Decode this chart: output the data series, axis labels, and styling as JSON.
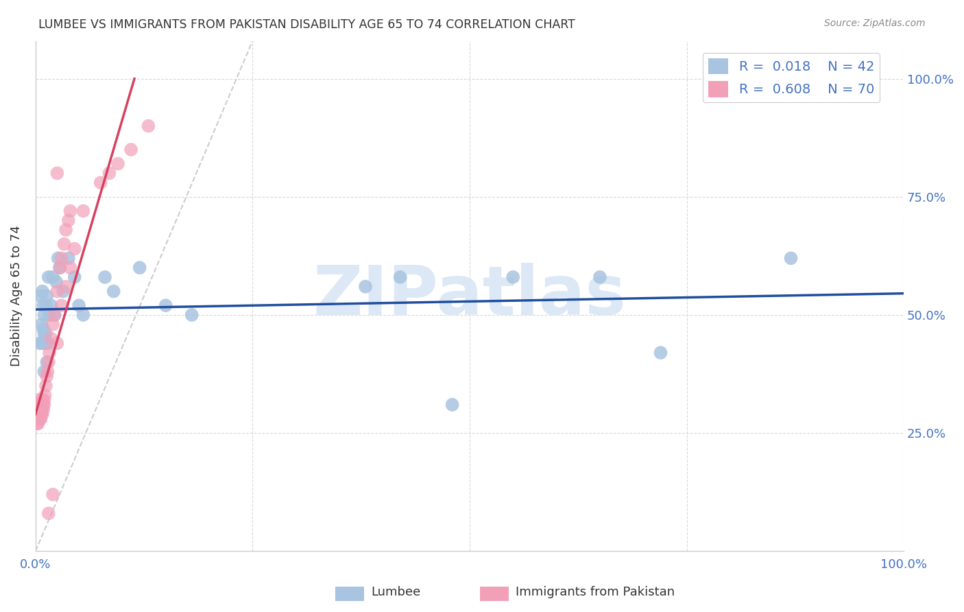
{
  "title": "LUMBEE VS IMMIGRANTS FROM PAKISTAN DISABILITY AGE 65 TO 74 CORRELATION CHART",
  "source": "Source: ZipAtlas.com",
  "ylabel": "Disability Age 65 to 74",
  "xlim": [
    0,
    1.0
  ],
  "ylim": [
    0,
    1.08
  ],
  "legend_R1": "0.018",
  "legend_N1": "42",
  "legend_R2": "0.608",
  "legend_N2": "70",
  "legend_label1": "Lumbee",
  "legend_label2": "Immigrants from Pakistan",
  "blue_color": "#a8c4e0",
  "pink_color": "#f2a0b8",
  "blue_line_color": "#1f4e9e",
  "pink_line_color": "#d84060",
  "diag_color": "#cccccc",
  "R_text_color": "#4472c4",
  "background_color": "#ffffff",
  "grid_color": "#d8d8d8",
  "watermark_color": "#dce8f5",
  "lumbee_x": [
    0.005,
    0.006,
    0.007,
    0.008,
    0.008,
    0.009,
    0.009,
    0.01,
    0.01,
    0.01,
    0.01,
    0.011,
    0.012,
    0.012,
    0.013,
    0.013,
    0.014,
    0.015,
    0.016,
    0.018,
    0.02,
    0.022,
    0.024,
    0.026,
    0.028,
    0.032,
    0.038,
    0.045,
    0.05,
    0.055,
    0.08,
    0.09,
    0.12,
    0.15,
    0.18,
    0.38,
    0.42,
    0.48,
    0.55,
    0.65,
    0.72,
    0.87
  ],
  "lumbee_y": [
    0.44,
    0.54,
    0.48,
    0.44,
    0.55,
    0.47,
    0.52,
    0.38,
    0.44,
    0.46,
    0.5,
    0.44,
    0.46,
    0.52,
    0.4,
    0.54,
    0.44,
    0.58,
    0.5,
    0.52,
    0.58,
    0.5,
    0.57,
    0.62,
    0.6,
    0.55,
    0.62,
    0.58,
    0.52,
    0.5,
    0.58,
    0.55,
    0.6,
    0.52,
    0.5,
    0.56,
    0.58,
    0.31,
    0.58,
    0.58,
    0.42,
    0.62
  ],
  "pakistan_x": [
    0.001,
    0.001,
    0.001,
    0.001,
    0.002,
    0.002,
    0.002,
    0.002,
    0.002,
    0.003,
    0.003,
    0.003,
    0.003,
    0.003,
    0.003,
    0.004,
    0.004,
    0.004,
    0.004,
    0.004,
    0.005,
    0.005,
    0.005,
    0.005,
    0.005,
    0.005,
    0.006,
    0.006,
    0.006,
    0.006,
    0.007,
    0.007,
    0.007,
    0.008,
    0.008,
    0.008,
    0.009,
    0.009,
    0.01,
    0.01,
    0.011,
    0.012,
    0.013,
    0.014,
    0.015,
    0.016,
    0.018,
    0.02,
    0.022,
    0.025,
    0.028,
    0.03,
    0.033,
    0.035,
    0.038,
    0.04,
    0.025,
    0.03,
    0.035,
    0.04,
    0.045,
    0.055,
    0.025,
    0.075,
    0.085,
    0.095,
    0.11,
    0.13,
    0.015,
    0.02
  ],
  "pakistan_y": [
    0.28,
    0.3,
    0.29,
    0.31,
    0.27,
    0.29,
    0.31,
    0.3,
    0.28,
    0.29,
    0.31,
    0.28,
    0.3,
    0.29,
    0.27,
    0.3,
    0.29,
    0.31,
    0.28,
    0.32,
    0.28,
    0.3,
    0.29,
    0.31,
    0.28,
    0.3,
    0.29,
    0.31,
    0.3,
    0.28,
    0.3,
    0.29,
    0.31,
    0.3,
    0.29,
    0.32,
    0.31,
    0.3,
    0.32,
    0.31,
    0.33,
    0.35,
    0.37,
    0.38,
    0.4,
    0.42,
    0.45,
    0.48,
    0.5,
    0.55,
    0.6,
    0.62,
    0.65,
    0.68,
    0.7,
    0.72,
    0.44,
    0.52,
    0.56,
    0.6,
    0.64,
    0.72,
    0.8,
    0.78,
    0.8,
    0.82,
    0.85,
    0.9,
    0.08,
    0.12
  ]
}
